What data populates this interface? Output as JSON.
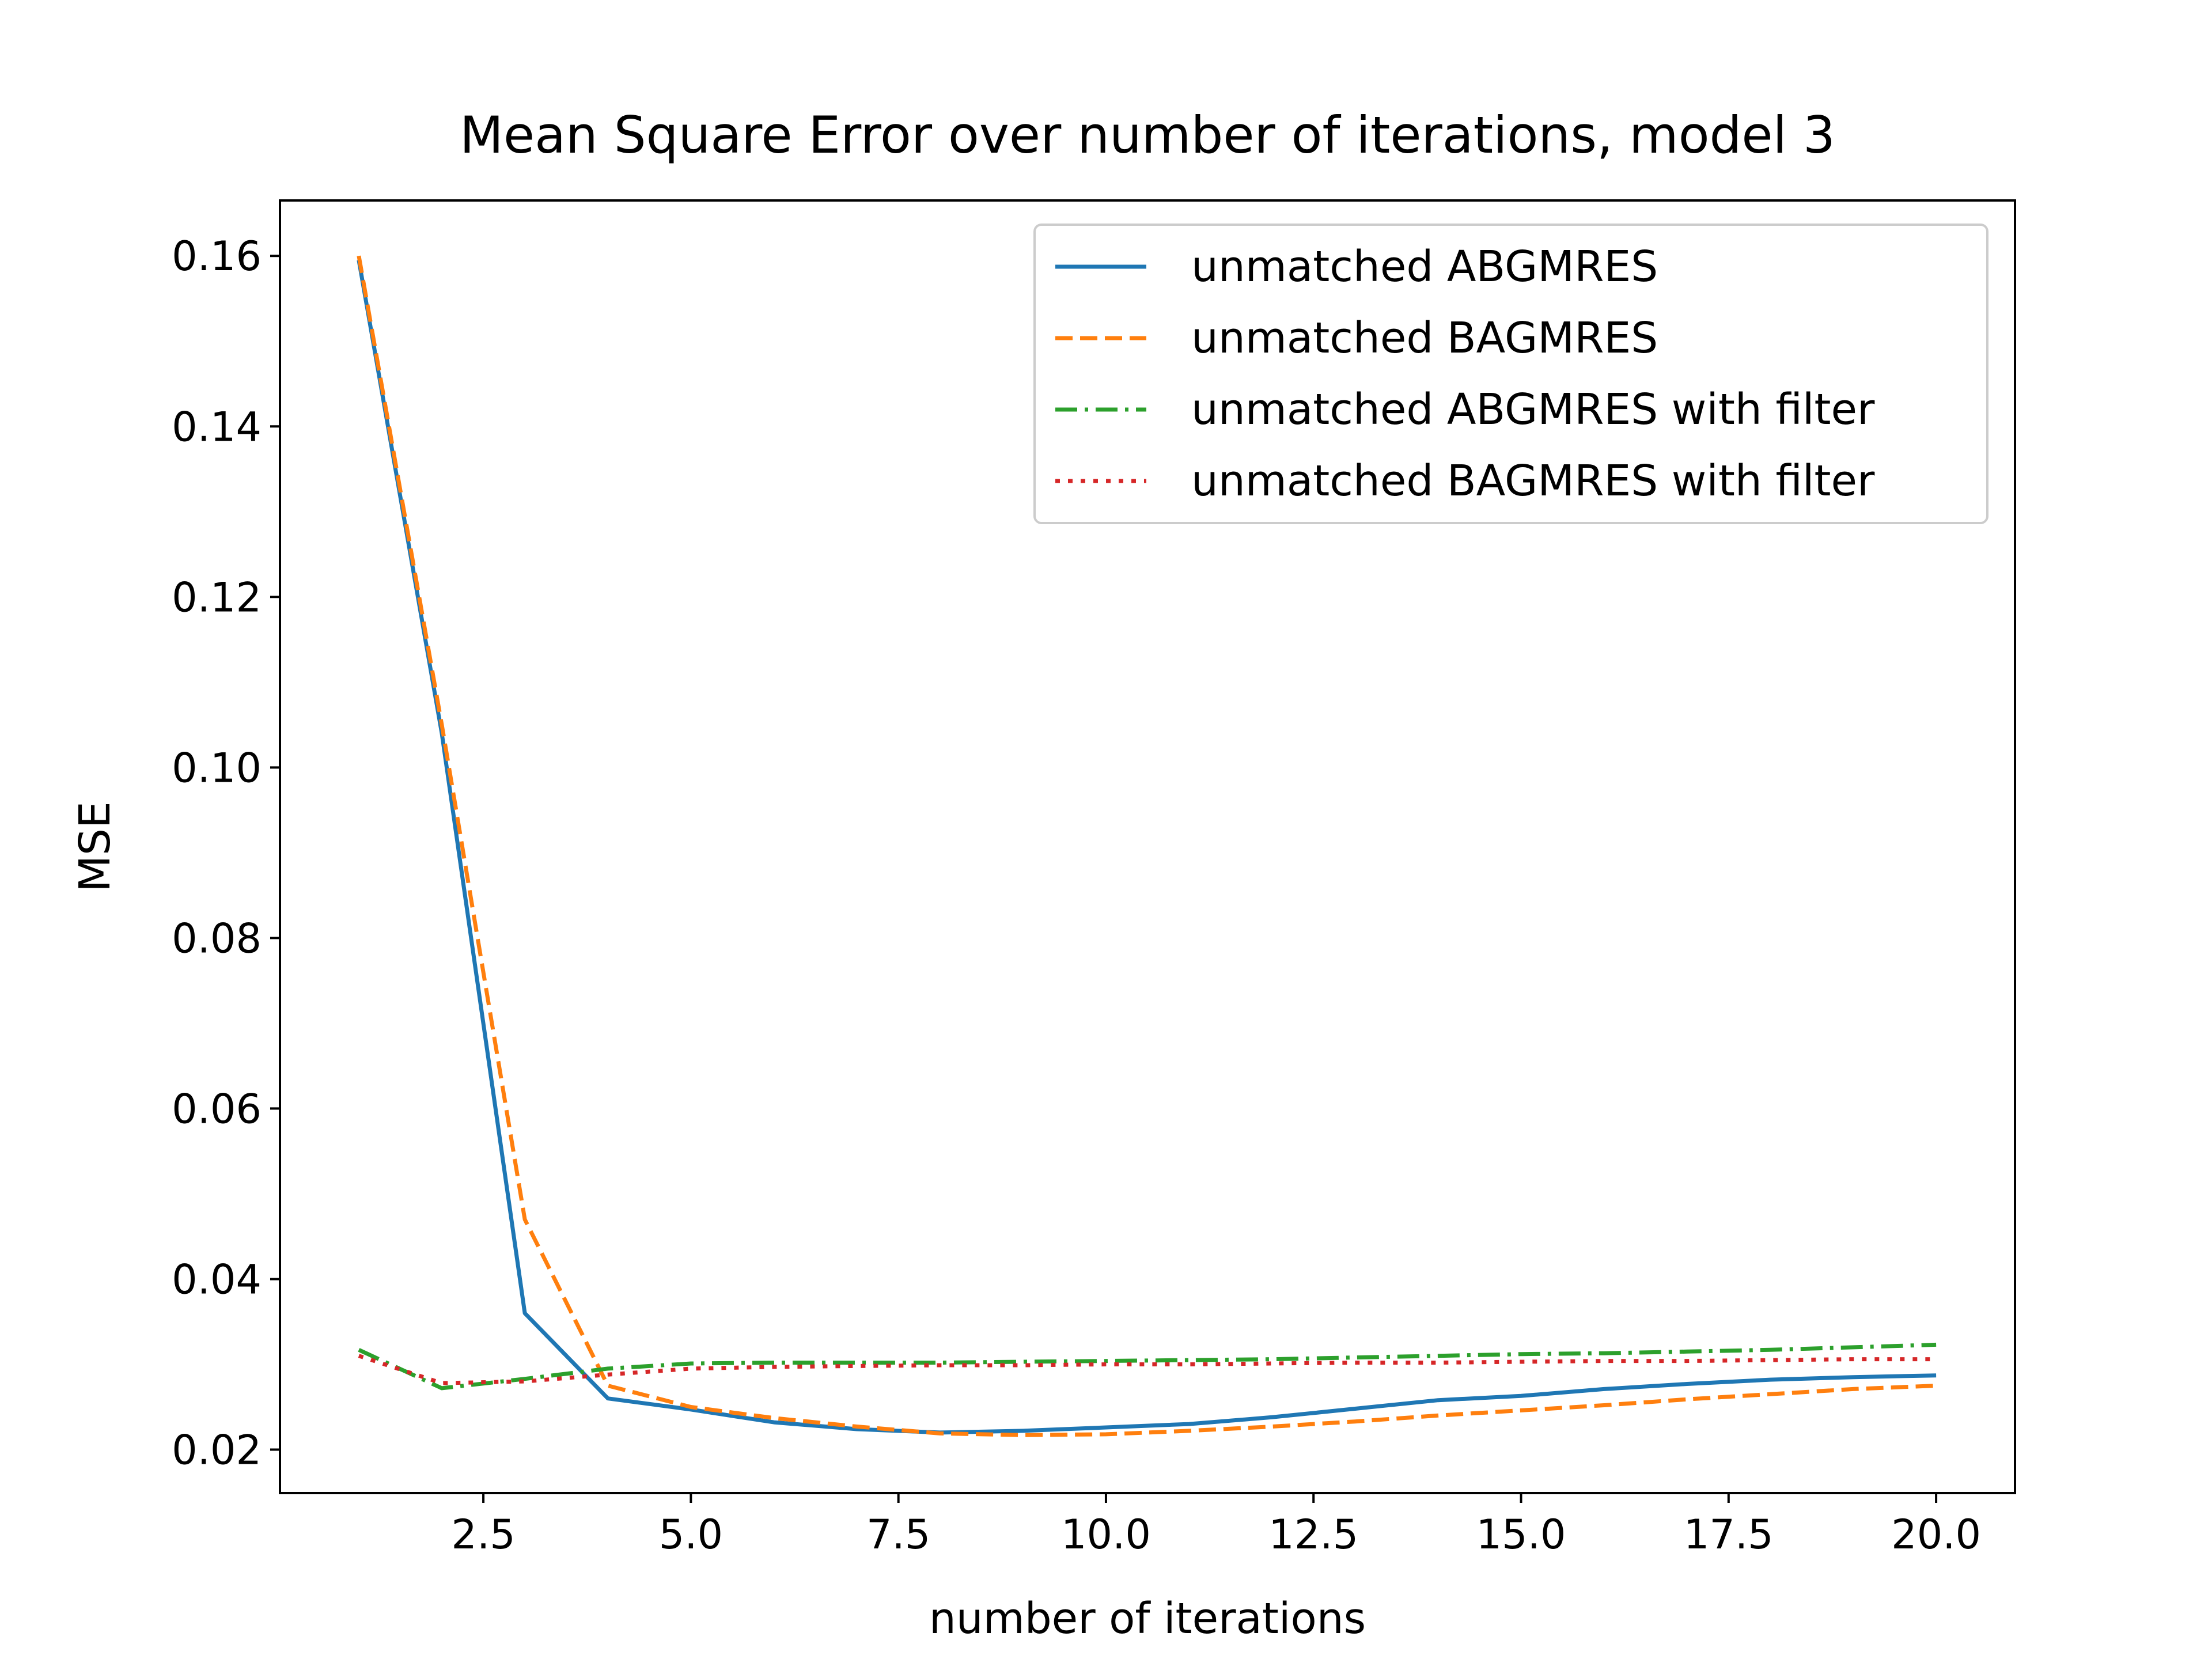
{
  "chart_data": {
    "type": "line",
    "title": "Mean Square Error over number of iterations, model 3",
    "xlabel": "number of iterations",
    "ylabel": "MSE",
    "xlim": [
      0.05,
      20.95
    ],
    "ylim": [
      0.0149,
      0.1665
    ],
    "xticks": [
      2.5,
      5.0,
      7.5,
      10.0,
      12.5,
      15.0,
      17.5,
      20.0
    ],
    "xtick_labels": [
      "2.5",
      "5.0",
      "7.5",
      "10.0",
      "12.5",
      "15.0",
      "17.5",
      "20.0"
    ],
    "yticks": [
      0.02,
      0.04,
      0.06,
      0.08,
      0.1,
      0.12,
      0.14,
      0.16
    ],
    "ytick_labels": [
      "0.02",
      "0.04",
      "0.06",
      "0.08",
      "0.10",
      "0.12",
      "0.14",
      "0.16"
    ],
    "grid": false,
    "legend_position": "top-right",
    "x": [
      1,
      2,
      3,
      4,
      5,
      6,
      7,
      8,
      9,
      10,
      11,
      12,
      13,
      14,
      15,
      16,
      17,
      18,
      19,
      20
    ],
    "series": [
      {
        "name": "unmatched ABGMRES",
        "color": "#1f77b4",
        "style": "solid",
        "values": [
          0.1595,
          0.104,
          0.036,
          0.026,
          0.0247,
          0.0232,
          0.0224,
          0.022,
          0.0222,
          0.0226,
          0.023,
          0.0238,
          0.0248,
          0.0258,
          0.0263,
          0.0271,
          0.0277,
          0.0282,
          0.0285,
          0.0287
        ]
      },
      {
        "name": "unmatched BAGMRES",
        "color": "#ff7f0e",
        "style": "dashed",
        "values": [
          0.16,
          0.105,
          0.047,
          0.0275,
          0.025,
          0.0237,
          0.0227,
          0.0219,
          0.0217,
          0.0218,
          0.0222,
          0.0227,
          0.0233,
          0.024,
          0.0246,
          0.0252,
          0.0259,
          0.0265,
          0.0271,
          0.0275
        ]
      },
      {
        "name": "unmatched ABGMRES with filter",
        "color": "#2ca02c",
        "style": "dashdot",
        "values": [
          0.0317,
          0.0272,
          0.0283,
          0.0295,
          0.0301,
          0.0302,
          0.0302,
          0.0302,
          0.0303,
          0.0304,
          0.0305,
          0.0306,
          0.0308,
          0.031,
          0.0312,
          0.0313,
          0.0315,
          0.0317,
          0.032,
          0.0323
        ]
      },
      {
        "name": "unmatched BAGMRES with filter",
        "color": "#d62728",
        "style": "dotted",
        "values": [
          0.031,
          0.0278,
          0.028,
          0.0288,
          0.0295,
          0.0297,
          0.0298,
          0.0299,
          0.0299,
          0.03,
          0.03,
          0.0301,
          0.0302,
          0.0302,
          0.0303,
          0.0304,
          0.0304,
          0.0305,
          0.0306,
          0.0306
        ]
      }
    ]
  }
}
